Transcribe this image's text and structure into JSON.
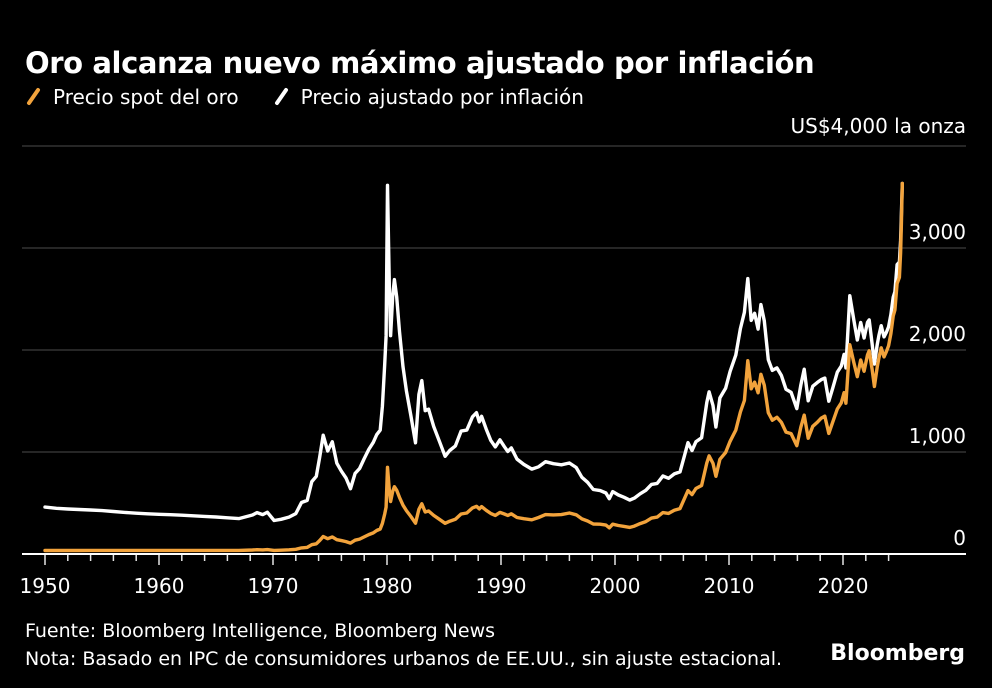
{
  "header": {
    "title": "Oro alcanza nuevo máximo ajustado por inflación",
    "unit_label": "US$4,000 la onza"
  },
  "footer": {
    "source": "Fuente: Bloomberg Intelligence, Bloomberg News",
    "note": "Nota: Basado en IPC de consumidores urbanos de EE.UU., sin ajuste estacional.",
    "brand": "Bloomberg"
  },
  "chart_data": {
    "type": "line",
    "title": "Oro alcanza nuevo máximo ajustado por inflación",
    "unit_label": "US$4,000 la onza",
    "xlabel": "",
    "ylabel": "US$ la onza",
    "xlim": [
      1950,
      2030.8
    ],
    "ylim": [
      0,
      4000
    ],
    "grid": "horizontal",
    "legend_position": "top-left",
    "style": {
      "background_color": "#000000",
      "grid_color": "#4D4D4D",
      "axis_color": "#FFFFFF",
      "tick_color": "#E6E6E6",
      "label_color": "#FFFFFF",
      "accent_orange": "#F2A33C"
    },
    "x_tick_labels": [
      1950,
      1960,
      1970,
      1980,
      1990,
      2000,
      2010,
      2020
    ],
    "x_minor_ticks": {
      "start": 1950,
      "end": 2024,
      "step": 2
    },
    "y_gridlines": [
      0,
      1000,
      2000,
      3000,
      4000
    ],
    "y_tick_labels": [
      {
        "value": 0,
        "label": "0"
      },
      {
        "value": 1000,
        "label": "1,000"
      },
      {
        "value": 2000,
        "label": "2,000"
      },
      {
        "value": 3000,
        "label": "3,000"
      }
    ],
    "x": [
      1950,
      1951,
      1952,
      1953,
      1954,
      1955,
      1956,
      1957,
      1958,
      1959,
      1960,
      1961,
      1962,
      1963,
      1964,
      1965,
      1966,
      1967,
      1968.2,
      1968.6,
      1969.1,
      1969.5,
      1970.1,
      1970.7,
      1971.4,
      1972,
      1972.5,
      1973,
      1973.4,
      1973.8,
      1974.1,
      1974.4,
      1974.8,
      1975.2,
      1975.6,
      1976,
      1976.4,
      1976.8,
      1977.2,
      1977.6,
      1978,
      1978.4,
      1978.8,
      1979.1,
      1979.4,
      1979.6,
      1979.8,
      1979.92,
      1980.04,
      1980.2,
      1980.32,
      1980.5,
      1980.65,
      1980.85,
      1981.1,
      1981.4,
      1981.7,
      1982.1,
      1982.5,
      1982.8,
      1983.05,
      1983.35,
      1983.65,
      1984.1,
      1984.6,
      1985.1,
      1985.5,
      1986,
      1986.5,
      1987,
      1987.5,
      1987.85,
      1988.1,
      1988.3,
      1988.7,
      1989.1,
      1989.5,
      1989.9,
      1990.3,
      1990.6,
      1990.9,
      1991.4,
      1992,
      1992.7,
      1993.3,
      1993.9,
      1994.6,
      1995.3,
      1996,
      1996.6,
      1997.1,
      1997.6,
      1998.1,
      1998.7,
      1999.2,
      1999.5,
      1999.8,
      2000.3,
      2000.8,
      2001.3,
      2001.7,
      2002.2,
      2002.7,
      2003.2,
      2003.7,
      2004.2,
      2004.7,
      2005.2,
      2005.7,
      2006.1,
      2006.4,
      2006.75,
      2007.1,
      2007.6,
      2008.05,
      2008.25,
      2008.6,
      2008.85,
      2009.2,
      2009.7,
      2010.1,
      2010.6,
      2011,
      2011.35,
      2011.65,
      2011.95,
      2012.25,
      2012.55,
      2012.8,
      2013.1,
      2013.45,
      2013.8,
      2014.2,
      2014.6,
      2015,
      2015.45,
      2015.95,
      2016.3,
      2016.6,
      2016.95,
      2017.35,
      2017.75,
      2018.1,
      2018.4,
      2018.75,
      2019.1,
      2019.5,
      2019.85,
      2020.1,
      2020.25,
      2020.6,
      2020.95,
      2021.25,
      2021.55,
      2021.85,
      2022.15,
      2022.3,
      2022.55,
      2022.75,
      2023,
      2023.15,
      2023.35,
      2023.6,
      2023.8,
      2024,
      2024.2,
      2024.4,
      2024.55,
      2024.75,
      2024.95,
      2025.05,
      2025.12,
      2025.2
    ],
    "series": [
      {
        "name": "Precio spot del oro",
        "color": "#F2A33C",
        "values": [
          34.7,
          34.7,
          34.6,
          34.8,
          35,
          35,
          34.9,
          34.9,
          35.1,
          35.2,
          35.3,
          35.2,
          35.2,
          35.1,
          35.1,
          35.1,
          35.2,
          35.2,
          39,
          42,
          40,
          43,
          35,
          37,
          41,
          46,
          60,
          65,
          91,
          100,
          132,
          172,
          150,
          168,
          140,
          131,
          122,
          107,
          135,
          146,
          168,
          190,
          207,
          230,
          245,
          300,
          392,
          460,
          850,
          630,
          515,
          615,
          660,
          625,
          555,
          478,
          425,
          368,
          302,
          438,
          492,
          412,
          422,
          378,
          340,
          301,
          322,
          340,
          392,
          402,
          452,
          468,
          442,
          465,
          428,
          398,
          378,
          408,
          392,
          378,
          394,
          358,
          346,
          335,
          358,
          386,
          383,
          386,
          402,
          384,
          344,
          324,
          294,
          292,
          283,
          257,
          292,
          279,
          271,
          261,
          274,
          298,
          318,
          352,
          362,
          406,
          398,
          428,
          445,
          545,
          622,
          582,
          642,
          672,
          892,
          962,
          888,
          762,
          928,
          995,
          1105,
          1215,
          1392,
          1505,
          1895,
          1620,
          1685,
          1580,
          1762,
          1655,
          1385,
          1312,
          1340,
          1290,
          1195,
          1180,
          1062,
          1242,
          1362,
          1135,
          1252,
          1292,
          1332,
          1352,
          1182,
          1292,
          1422,
          1482,
          1582,
          1478,
          2052,
          1878,
          1738,
          1902,
          1792,
          1952,
          1992,
          1812,
          1642,
          1832,
          1922,
          2022,
          1932,
          1982,
          2042,
          2162,
          2332,
          2392,
          2652,
          2712,
          2952,
          3242,
          3632
        ]
      },
      {
        "name": "Precio ajustado por inflación",
        "color": "#FFFFFF",
        "values": [
          460,
          448,
          441,
          436,
          431,
          425,
          417,
          408,
          400,
          394,
          389,
          385,
          380,
          375,
          369,
          363,
          355,
          347,
          382,
          406,
          386,
          410,
          328,
          340,
          362,
          396,
          505,
          525,
          710,
          762,
          950,
          1165,
          1010,
          1100,
          890,
          812,
          745,
          640,
          790,
          838,
          935,
          1025,
          1095,
          1170,
          1215,
          1450,
          1860,
          2140,
          3615,
          2640,
          2140,
          2530,
          2690,
          2520,
          2180,
          1835,
          1600,
          1355,
          1090,
          1565,
          1700,
          1405,
          1420,
          1250,
          1105,
          958,
          1015,
          1060,
          1205,
          1215,
          1345,
          1385,
          1295,
          1350,
          1225,
          1115,
          1050,
          1120,
          1052,
          1005,
          1040,
          930,
          878,
          832,
          855,
          905,
          885,
          875,
          892,
          848,
          752,
          703,
          632,
          622,
          598,
          542,
          612,
          578,
          556,
          528,
          548,
          590,
          625,
          682,
          692,
          765,
          742,
          785,
          805,
          965,
          1092,
          1015,
          1100,
          1140,
          1485,
          1590,
          1455,
          1245,
          1530,
          1625,
          1790,
          1950,
          2210,
          2370,
          2700,
          2290,
          2360,
          2205,
          2445,
          2285,
          1905,
          1800,
          1825,
          1750,
          1615,
          1585,
          1425,
          1655,
          1812,
          1502,
          1645,
          1682,
          1710,
          1725,
          1498,
          1625,
          1782,
          1842,
          1958,
          1825,
          2532,
          2295,
          2098,
          2270,
          2118,
          2272,
          2295,
          2062,
          1862,
          2052,
          2142,
          2238,
          2128,
          2172,
          2228,
          2348,
          2518,
          2572,
          2838,
          2862,
          3072,
          3335,
          3632
        ]
      }
    ]
  }
}
